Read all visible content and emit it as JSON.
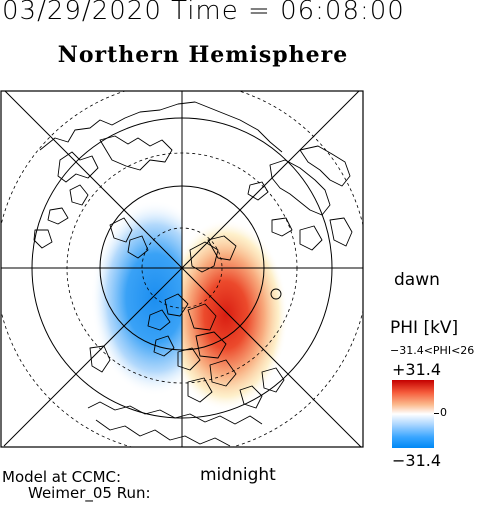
{
  "header": {
    "timestamp": "03/29/2020 Time = 06:08:00",
    "title": "Northern Hemisphere"
  },
  "orientation": {
    "right": "dawn",
    "bottom": "midnight"
  },
  "legend": {
    "quantity": "PHI [kV]",
    "range_text": "−31.4<PHI<26",
    "max_label": "+31.4",
    "zero_label": "0",
    "min_label": "−31.4",
    "colors": {
      "max": "#c40000",
      "mid": "#ffffff",
      "min": "#0088f5"
    }
  },
  "footer": {
    "model_line": "Model at CCMC:",
    "run_line": "Weimer_05 Run:"
  }
}
